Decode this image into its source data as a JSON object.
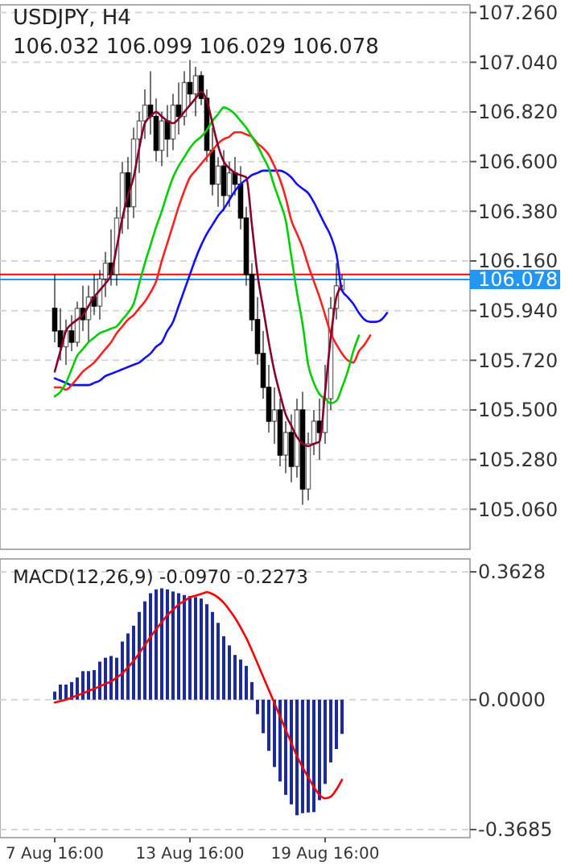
{
  "chart_data": [
    {
      "type": "candlestick",
      "title": "USDJPY, H4",
      "subtitle": "106.032 106.099 106.029 106.078",
      "color": "#000000",
      "categories": [
        null,
        null,
        null,
        null,
        null,
        null,
        null,
        null,
        null,
        null,
        null,
        null,
        null,
        null,
        null,
        null,
        null,
        null,
        null,
        null,
        null,
        null,
        null,
        null,
        null,
        null,
        null,
        null,
        null,
        null,
        null,
        null,
        null,
        null,
        null,
        null,
        null,
        null,
        null,
        null,
        null,
        null,
        null,
        null,
        null,
        null,
        null,
        null,
        null,
        null,
        null,
        null,
        null,
        null,
        null,
        null,
        null,
        null,
        null,
        null,
        null,
        null,
        null,
        null,
        null,
        null,
        null,
        null,
        null,
        null,
        null,
        null,
        null
      ],
      "ohlc": [
        [
          105.95,
          106.1,
          105.8,
          105.85
        ],
        [
          105.85,
          105.95,
          105.72,
          105.78
        ],
        [
          105.78,
          105.9,
          105.7,
          105.85
        ],
        [
          105.85,
          105.92,
          105.76,
          105.8
        ],
        [
          105.8,
          105.98,
          105.78,
          105.95
        ],
        [
          105.95,
          106.05,
          105.85,
          105.9
        ],
        [
          105.9,
          106.05,
          105.8,
          106.0
        ],
        [
          106.0,
          106.1,
          105.92,
          105.96
        ],
        [
          105.96,
          106.12,
          105.9,
          106.08
        ],
        [
          106.08,
          106.2,
          106.0,
          106.15
        ],
        [
          106.15,
          106.3,
          106.05,
          106.1
        ],
        [
          106.1,
          106.4,
          106.05,
          106.35
        ],
        [
          106.35,
          106.6,
          106.28,
          106.55
        ],
        [
          106.55,
          106.62,
          106.3,
          106.4
        ],
        [
          106.4,
          106.75,
          106.35,
          106.7
        ],
        [
          106.7,
          106.82,
          106.55,
          106.78
        ],
        [
          106.78,
          106.92,
          106.7,
          106.85
        ],
        [
          106.85,
          107.0,
          106.72,
          106.8
        ],
        [
          106.8,
          106.88,
          106.6,
          106.65
        ],
        [
          106.65,
          106.82,
          106.58,
          106.78
        ],
        [
          106.78,
          106.85,
          106.62,
          106.7
        ],
        [
          106.7,
          106.9,
          106.65,
          106.85
        ],
        [
          106.85,
          106.95,
          106.72,
          106.8
        ],
        [
          106.8,
          107.0,
          106.76,
          106.95
        ],
        [
          106.95,
          107.05,
          106.85,
          106.9
        ],
        [
          106.9,
          107.02,
          106.8,
          106.98
        ],
        [
          106.98,
          107.0,
          106.85,
          106.88
        ],
        [
          106.88,
          106.92,
          106.6,
          106.65
        ],
        [
          106.65,
          106.75,
          106.45,
          106.5
        ],
        [
          106.5,
          106.62,
          106.4,
          106.58
        ],
        [
          106.58,
          106.65,
          106.38,
          106.45
        ],
        [
          106.45,
          106.6,
          106.4,
          106.55
        ],
        [
          106.55,
          106.62,
          106.45,
          106.5
        ],
        [
          106.5,
          106.58,
          106.3,
          106.35
        ],
        [
          106.35,
          106.4,
          106.05,
          106.1
        ],
        [
          106.1,
          106.15,
          105.85,
          105.9
        ],
        [
          105.9,
          106.0,
          105.7,
          105.75
        ],
        [
          105.75,
          105.85,
          105.55,
          105.6
        ],
        [
          105.6,
          105.7,
          105.4,
          105.45
        ],
        [
          105.45,
          105.6,
          105.35,
          105.5
        ],
        [
          105.5,
          105.55,
          105.25,
          105.3
        ],
        [
          105.3,
          105.45,
          105.22,
          105.4
        ],
        [
          105.4,
          105.48,
          105.18,
          105.25
        ],
        [
          105.25,
          105.55,
          105.2,
          105.5
        ],
        [
          105.5,
          105.58,
          105.08,
          105.15
        ],
        [
          105.15,
          105.4,
          105.1,
          105.35
        ],
        [
          105.35,
          105.5,
          105.3,
          105.45
        ],
        [
          105.45,
          105.55,
          105.28,
          105.4
        ],
        [
          105.4,
          105.7,
          105.35,
          105.55
        ],
        [
          105.55,
          106.0,
          105.5,
          105.95
        ],
        [
          105.95,
          106.15,
          105.9,
          106.05
        ],
        [
          106.032,
          106.099,
          106.029,
          106.078
        ],
        null,
        null,
        null,
        null,
        null,
        null,
        null,
        null,
        null,
        null,
        null,
        null,
        null,
        null,
        null,
        null,
        null,
        null,
        null,
        null,
        null
      ],
      "series": [
        {
          "type": "line",
          "color": "#1010ff",
          "values": [
            105.64,
            105.63,
            105.62,
            105.61,
            105.61,
            105.61,
            105.61,
            105.62,
            105.63,
            105.65,
            105.66,
            105.67,
            105.68,
            105.69,
            105.7,
            105.71,
            105.73,
            105.75,
            105.78,
            105.8,
            105.85,
            105.89,
            105.96,
            106.03,
            106.1,
            106.17,
            106.23,
            106.28,
            106.32,
            106.36,
            106.39,
            106.43,
            106.47,
            106.5,
            106.52,
            106.54,
            106.55,
            106.56,
            106.56,
            106.56,
            106.56,
            106.55,
            106.53,
            106.5,
            106.48,
            106.46,
            106.42,
            106.37,
            106.32,
            106.27,
            106.19,
            106.03,
            106.0,
            105.97,
            105.93,
            105.9,
            105.89,
            105.89,
            105.9,
            105.93,
            null,
            null,
            null,
            null,
            null,
            null,
            null,
            null,
            null,
            null,
            null,
            null,
            null
          ]
        },
        {
          "type": "line",
          "color": "#ff2020",
          "values": [
            105.6,
            105.6,
            105.59,
            105.61,
            105.64,
            105.67,
            105.69,
            105.71,
            105.74,
            105.77,
            105.8,
            105.84,
            105.87,
            105.9,
            105.92,
            105.95,
            105.98,
            106.02,
            106.07,
            106.16,
            106.24,
            106.32,
            106.4,
            106.47,
            106.53,
            106.56,
            106.59,
            106.62,
            106.65,
            106.68,
            106.7,
            106.71,
            106.73,
            106.73,
            106.72,
            106.71,
            106.68,
            106.66,
            106.63,
            106.58,
            106.52,
            106.44,
            106.34,
            106.28,
            106.22,
            106.14,
            106.07,
            106.0,
            105.92,
            105.84,
            105.79,
            105.75,
            105.72,
            105.71,
            105.76,
            105.79,
            105.83,
            null,
            null,
            null,
            null,
            null,
            null,
            null,
            null,
            null,
            null,
            null,
            null,
            null,
            null,
            null,
            null
          ]
        },
        {
          "type": "line",
          "color": "#00d000",
          "values": [
            105.56,
            105.58,
            105.62,
            105.68,
            105.74,
            105.77,
            105.8,
            105.82,
            105.84,
            105.85,
            105.86,
            105.87,
            105.9,
            105.93,
            105.97,
            106.06,
            106.15,
            106.23,
            106.31,
            106.38,
            106.46,
            106.53,
            106.58,
            106.62,
            106.66,
            106.69,
            106.71,
            106.74,
            106.78,
            106.81,
            106.84,
            106.83,
            106.81,
            106.78,
            106.75,
            106.71,
            106.67,
            106.62,
            106.57,
            106.49,
            106.42,
            106.34,
            106.18,
            106.02,
            105.88,
            105.7,
            105.62,
            105.57,
            105.55,
            105.53,
            105.54,
            105.6,
            105.67,
            105.76,
            105.83,
            null,
            null,
            null,
            null,
            null,
            null,
            null,
            null,
            null,
            null,
            null,
            null,
            null,
            null,
            null,
            null,
            null,
            null
          ]
        },
        {
          "type": "line",
          "color": "#8b0028",
          "values": [
            105.67,
            105.76,
            105.85,
            105.88,
            105.9,
            105.92,
            105.96,
            106.0,
            106.03,
            106.06,
            106.1,
            106.22,
            106.35,
            106.45,
            106.53,
            106.66,
            106.77,
            106.8,
            106.82,
            106.8,
            106.78,
            106.77,
            106.79,
            106.82,
            106.85,
            106.88,
            106.91,
            106.87,
            106.77,
            106.67,
            106.6,
            106.57,
            106.55,
            106.54,
            106.53,
            106.32,
            106.1,
            105.95,
            105.8,
            105.67,
            105.57,
            105.48,
            105.43,
            105.38,
            105.35,
            105.34,
            105.35,
            105.36,
            105.58,
            105.82,
            106.0,
            106.05,
            null,
            null,
            null,
            null,
            null,
            null,
            null,
            null,
            null,
            null,
            null,
            null,
            null,
            null,
            null,
            null,
            null,
            null,
            null,
            null,
            null
          ]
        }
      ],
      "ylim": [
        104.89,
        107.28
      ],
      "yticks": [
        {
          "value": 107.26,
          "label": "107.260"
        },
        {
          "value": 107.04,
          "label": "107.040"
        },
        {
          "value": 106.82,
          "label": "106.820"
        },
        {
          "value": 106.6,
          "label": "106.600"
        },
        {
          "value": 106.38,
          "label": "106.380"
        },
        {
          "value": 106.16,
          "label": "106.160"
        },
        {
          "value": 105.94,
          "label": "105.940"
        },
        {
          "value": 105.72,
          "label": "105.720"
        },
        {
          "value": 105.5,
          "label": "105.500"
        },
        {
          "value": 105.28,
          "label": "105.280"
        },
        {
          "value": 105.06,
          "label": "105.060"
        }
      ],
      "ref_lines": [
        {
          "axis": "y",
          "value": 106.1,
          "color": "#ff0000"
        },
        {
          "axis": "y",
          "value": 106.078,
          "label": "106.078",
          "color": "#2196f3"
        }
      ],
      "grid": "y",
      "tick_labels": "y"
    },
    {
      "type": "bar",
      "title": "MACD(12,26,9) -0.0970 -0.2273",
      "categories": [
        "7 Aug 16:00",
        null,
        null,
        null,
        null,
        null,
        null,
        null,
        null,
        null,
        null,
        null,
        null,
        null,
        null,
        null,
        null,
        null,
        null,
        null,
        null,
        null,
        null,
        null,
        "13 Aug 16:00",
        null,
        null,
        null,
        null,
        null,
        null,
        null,
        null,
        null,
        null,
        null,
        null,
        null,
        null,
        null,
        null,
        null,
        null,
        null,
        null,
        null,
        null,
        null,
        "19 Aug 16:00",
        null,
        null,
        null,
        null,
        null,
        null,
        null,
        null,
        null,
        null,
        null,
        null,
        null,
        null,
        null,
        null,
        null,
        null,
        null,
        null,
        null,
        null,
        null,
        null
      ],
      "series": [
        {
          "type": "bar",
          "color": "#1c2a9c",
          "values": [
            0.023,
            0.043,
            0.043,
            0.05,
            0.063,
            0.081,
            0.081,
            0.084,
            0.108,
            0.119,
            0.124,
            0.119,
            0.165,
            0.188,
            0.21,
            0.249,
            0.279,
            0.302,
            0.313,
            0.316,
            0.313,
            0.307,
            0.302,
            0.297,
            0.294,
            0.291,
            0.287,
            0.271,
            0.249,
            0.218,
            0.18,
            0.154,
            0.127,
            0.114,
            0.096,
            0.05,
            -0.041,
            -0.095,
            -0.145,
            -0.191,
            -0.232,
            -0.27,
            -0.297,
            -0.328,
            -0.322,
            -0.32,
            -0.319,
            -0.285,
            -0.239,
            -0.178,
            -0.14,
            -0.097,
            null,
            null,
            null,
            null,
            null,
            null,
            null,
            null,
            null,
            null,
            null,
            null,
            null,
            null,
            null,
            null,
            null,
            null,
            null,
            null,
            null
          ]
        },
        {
          "type": "line",
          "color": "#ff0000",
          "values": [
            -0.008,
            -0.004,
            0.0,
            0.006,
            0.012,
            0.018,
            0.025,
            0.031,
            0.038,
            0.045,
            0.052,
            0.063,
            0.075,
            0.092,
            0.11,
            0.132,
            0.155,
            0.178,
            0.2,
            0.22,
            0.24,
            0.255,
            0.27,
            0.28,
            0.29,
            0.295,
            0.3,
            0.305,
            0.3,
            0.29,
            0.275,
            0.255,
            0.232,
            0.205,
            0.175,
            0.14,
            0.103,
            0.065,
            0.028,
            -0.01,
            -0.048,
            -0.085,
            -0.123,
            -0.16,
            -0.192,
            -0.22,
            -0.248,
            -0.27,
            -0.28,
            -0.275,
            -0.255,
            -0.227,
            null,
            null,
            null,
            null,
            null,
            null,
            null,
            null,
            null,
            null,
            null,
            null,
            null,
            null,
            null,
            null,
            null,
            null,
            null,
            null,
            null
          ]
        }
      ],
      "ylim": [
        -0.3685,
        0.3628
      ],
      "yticks": [
        {
          "value": 0.3628,
          "label": "0.3628"
        },
        {
          "value": 0,
          "label": "0.0000"
        },
        {
          "value": -0.3685,
          "label": "-0.3685"
        }
      ],
      "grid": "y"
    }
  ]
}
